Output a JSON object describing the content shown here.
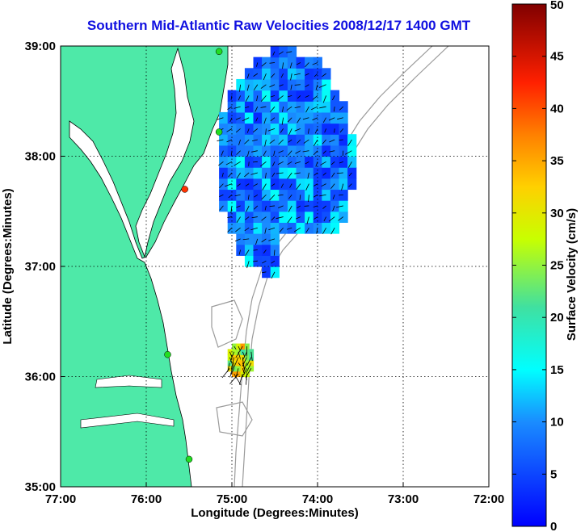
{
  "colors": {
    "land": "#4ee9a8",
    "ocean": "#ffffff",
    "title": "#1010e0",
    "grid": "#000000",
    "bathymetry": "#9a9a9a",
    "station": "#22dd22",
    "station_offline": "#ff3300"
  },
  "chart_data": {
    "type": "heatmap",
    "title": "Southern Mid-Atlantic Raw Velocities 2008/12/17 1400 GMT",
    "xlabel": "Longitude (Degrees:Minutes)",
    "ylabel": "Latitude (Degrees:Minutes)",
    "x_tick_labels": [
      "77:00",
      "76:00",
      "75:00",
      "74:00",
      "73:00",
      "72:00"
    ],
    "y_tick_labels": [
      "39:00",
      "38:00",
      "37:00",
      "36:00",
      "35:00"
    ],
    "xlim": [
      -77,
      -72
    ],
    "ylim": [
      35,
      39
    ],
    "grid": true,
    "colorbar": {
      "label": "Surface Velocity (cm/s)",
      "min": 0,
      "max": 50,
      "tick_labels": [
        "0",
        "5",
        "10",
        "15",
        "20",
        "25",
        "30",
        "35",
        "40",
        "45",
        "50"
      ],
      "colormap": "jet"
    },
    "velocity_regions": [
      {
        "name": "",
        "lon_range": [
          -75.15,
          -73.6
        ],
        "lat_range": [
          36.9,
          38.95
        ],
        "mean_speed": 8,
        "speed_range": [
          3,
          16
        ],
        "dominant_direction": "southwest"
      },
      {
        "name": "",
        "lon_range": [
          -75.05,
          -74.75
        ],
        "lat_range": [
          36.0,
          36.3
        ],
        "mean_speed": 28,
        "speed_range": [
          20,
          36
        ],
        "dominant_direction": "south"
      }
    ],
    "stations": [
      {
        "lon": -75.15,
        "lat": 38.95,
        "status": "online"
      },
      {
        "lon": -75.15,
        "lat": 38.22,
        "status": "online"
      },
      {
        "lon": -75.55,
        "lat": 37.7,
        "status": "offline"
      },
      {
        "lon": -75.75,
        "lat": 36.2,
        "status": "online"
      },
      {
        "lon": -75.5,
        "lat": 35.25,
        "status": "online"
      }
    ]
  }
}
